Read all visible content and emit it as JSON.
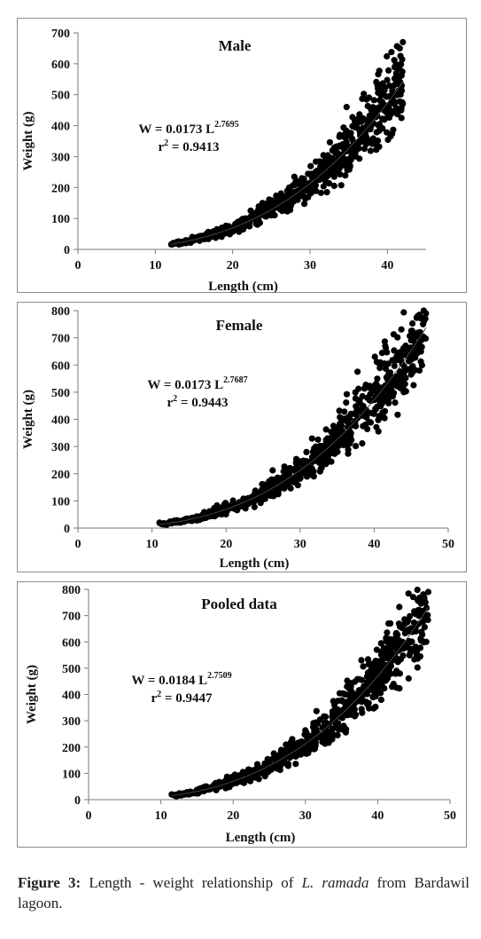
{
  "chart_data": [
    {
      "type": "scatter",
      "title": "Male",
      "equation": "W = 0.0173 L",
      "exponent": "2.7695",
      "r2_prefix": "r",
      "r2_sup": "2",
      "r2_value": " = 0.9413",
      "xlabel": "Length (cm)",
      "ylabel": "Weight (g)",
      "xlim": [
        0,
        45
      ],
      "ylim": [
        0,
        700
      ],
      "xticks": [
        0,
        10,
        20,
        30,
        40
      ],
      "yticks": [
        0,
        100,
        200,
        300,
        400,
        500,
        600,
        700
      ],
      "fit": {
        "a": 0.0173,
        "b": 2.7695,
        "x_range": [
          12,
          42
        ]
      },
      "points": {
        "x_range": [
          12,
          42
        ],
        "n": 700,
        "scatter": 0.13,
        "anchors": [
          [
            12.5,
            20
          ],
          [
            42,
            670
          ],
          [
            41.6,
            650
          ]
        ]
      }
    },
    {
      "type": "scatter",
      "title": "Female",
      "equation": "W = 0.0173 L",
      "exponent": "2.7687",
      "r2_prefix": "r",
      "r2_sup": "2",
      "r2_value": " = 0.9443",
      "xlabel": "Length (cm)",
      "ylabel": "Weight (g)",
      "xlim": [
        0,
        50
      ],
      "ylim": [
        0,
        800
      ],
      "xticks": [
        0,
        10,
        20,
        30,
        40,
        50
      ],
      "yticks": [
        0,
        100,
        200,
        300,
        400,
        500,
        600,
        700,
        800
      ],
      "fit": {
        "a": 0.0173,
        "b": 2.7687,
        "x_range": [
          11,
          47
        ]
      },
      "points": {
        "x_range": [
          11,
          47
        ],
        "n": 720,
        "scatter": 0.13,
        "anchors": [
          [
            11,
            20
          ],
          [
            47,
            790
          ],
          [
            46.6,
            750
          ],
          [
            41.5,
            670
          ]
        ]
      }
    },
    {
      "type": "scatter",
      "title": "Pooled data",
      "equation": "W = 0.0184 L",
      "exponent": "2.7509",
      "r2_prefix": "r",
      "r2_sup": "2",
      "r2_value": " = 0.9447",
      "xlabel": "Length (cm)",
      "ylabel": "Weight (g)",
      "xlim": [
        0,
        50
      ],
      "ylim": [
        0,
        800
      ],
      "xticks": [
        0,
        10,
        20,
        30,
        40,
        50
      ],
      "yticks": [
        0,
        100,
        200,
        300,
        400,
        500,
        600,
        700,
        800
      ],
      "fit": {
        "a": 0.0184,
        "b": 2.7509,
        "x_range": [
          11.5,
          47
        ]
      },
      "points": {
        "x_range": [
          11.5,
          47
        ],
        "n": 760,
        "scatter": 0.13,
        "anchors": [
          [
            11.5,
            20
          ],
          [
            47,
            790
          ],
          [
            46.6,
            750
          ],
          [
            41.5,
            670
          ]
        ]
      }
    }
  ],
  "caption": {
    "label": "Figure 3:",
    "text_before": " Length - weight relationship of ",
    "species": "L. ramada",
    "text_after": " from Bardawil lagoon."
  }
}
